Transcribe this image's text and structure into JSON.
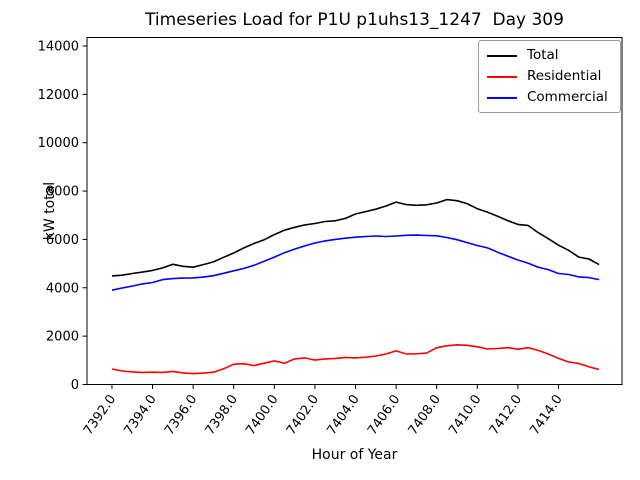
{
  "chart_data": {
    "type": "line",
    "title": "Timeseries Load for P1U p1uhs13_1247  Day 309",
    "xlabel": "Hour of Year",
    "ylabel": "kW total",
    "grid": false,
    "legend_position": "upper right",
    "xlim": [
      7390.77,
      7417.13
    ],
    "ylim": [
      0,
      14350
    ],
    "xticks": {
      "values": [
        7392,
        7394,
        7396,
        7398,
        7400,
        7402,
        7404,
        7406,
        7408,
        7410,
        7412,
        7414
      ],
      "labels": [
        "7392.0",
        "7394.0",
        "7396.0",
        "7398.0",
        "7400.0",
        "7402.0",
        "7404.0",
        "7406.0",
        "7408.0",
        "7410.0",
        "7412.0",
        "7414.0"
      ]
    },
    "yticks": {
      "values": [
        0,
        2000,
        4000,
        6000,
        8000,
        10000,
        12000,
        14000
      ],
      "labels": [
        "0",
        "2000",
        "4000",
        "6000",
        "8000",
        "10000",
        "12000",
        "14000"
      ]
    },
    "x": [
      7392,
      7392.5,
      7393,
      7393.5,
      7394,
      7394.5,
      7395,
      7395.5,
      7396,
      7396.5,
      7397,
      7397.5,
      7398,
      7398.5,
      7399,
      7399.5,
      7400,
      7400.5,
      7401,
      7401.5,
      7402,
      7402.5,
      7403,
      7403.5,
      7404,
      7404.5,
      7405,
      7405.5,
      7406,
      7406.5,
      7407,
      7407.5,
      7408,
      7408.5,
      7409,
      7409.5,
      7410,
      7410.5,
      7411,
      7411.5,
      7412,
      7412.5,
      7413,
      7413.5,
      7414,
      7414.5,
      7415,
      7415.5,
      7416
    ],
    "series": [
      {
        "name": "Total",
        "color": "#000000",
        "values": [
          4490,
          4520,
          4590,
          4650,
          4720,
          4820,
          4970,
          4890,
          4850,
          4960,
          5070,
          5260,
          5440,
          5650,
          5830,
          5990,
          6200,
          6380,
          6500,
          6600,
          6660,
          6740,
          6770,
          6870,
          7050,
          7150,
          7250,
          7380,
          7545,
          7440,
          7410,
          7430,
          7505,
          7645,
          7600,
          7480,
          7270,
          7130,
          6955,
          6780,
          6620,
          6580,
          6280,
          6030,
          5760,
          5550,
          5270,
          5190,
          4960
        ]
      },
      {
        "name": "Residential",
        "color": "#ff0000",
        "values": [
          640,
          560,
          520,
          500,
          510,
          500,
          540,
          480,
          450,
          470,
          510,
          650,
          840,
          860,
          780,
          880,
          975,
          880,
          1060,
          1100,
          1010,
          1060,
          1080,
          1120,
          1100,
          1130,
          1180,
          1260,
          1390,
          1260,
          1270,
          1300,
          1520,
          1600,
          1640,
          1620,
          1560,
          1470,
          1490,
          1520,
          1460,
          1520,
          1410,
          1260,
          1080,
          930,
          870,
          730,
          620
        ]
      },
      {
        "name": "Commercial",
        "color": "#0000ff",
        "values": [
          3900,
          3990,
          4070,
          4160,
          4220,
          4340,
          4380,
          4400,
          4410,
          4440,
          4500,
          4600,
          4700,
          4800,
          4930,
          5100,
          5270,
          5450,
          5600,
          5730,
          5850,
          5940,
          6000,
          6050,
          6090,
          6120,
          6140,
          6120,
          6140,
          6170,
          6180,
          6160,
          6150,
          6080,
          5990,
          5870,
          5750,
          5650,
          5470,
          5310,
          5150,
          5020,
          4850,
          4750,
          4590,
          4550,
          4450,
          4420,
          4340
        ]
      }
    ]
  }
}
